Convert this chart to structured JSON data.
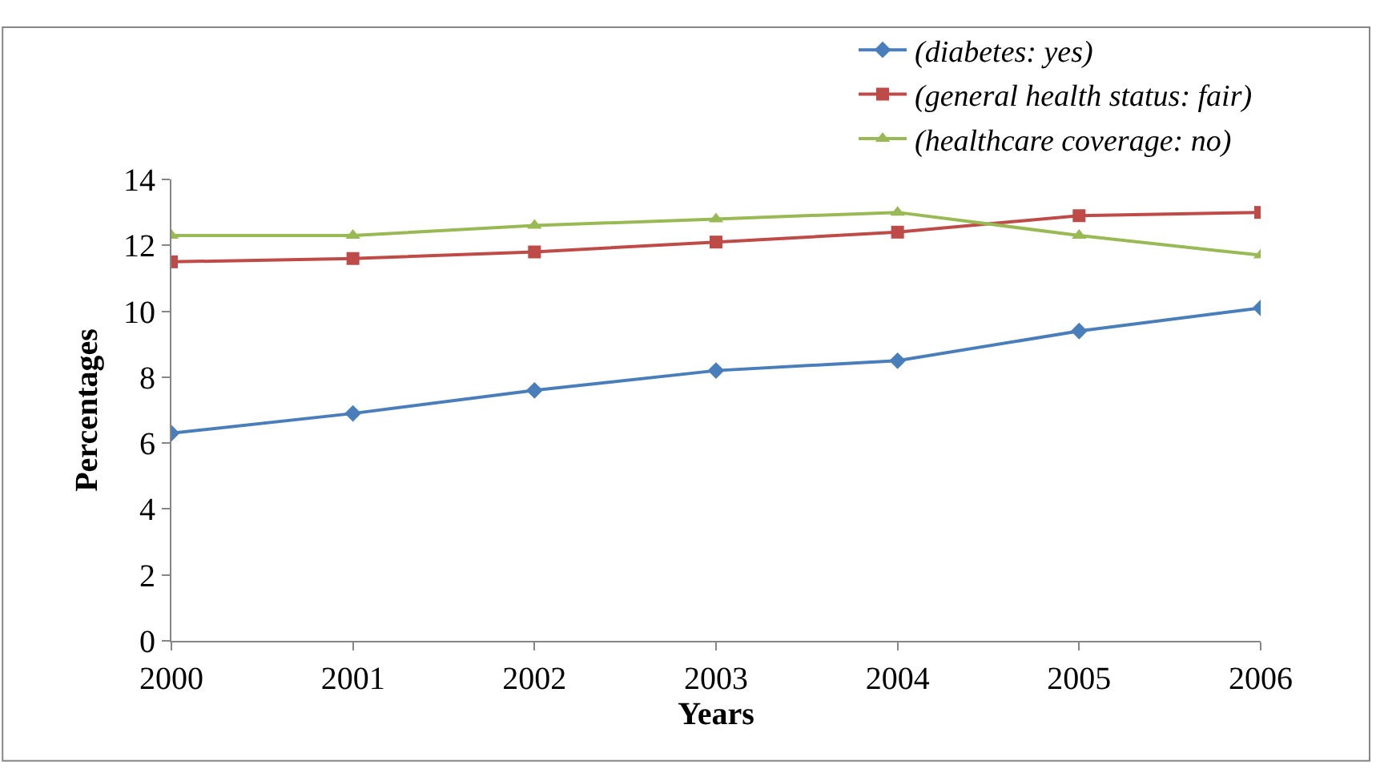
{
  "chart_data": {
    "type": "line",
    "xlabel": "Years",
    "ylabel": "Percentages",
    "categories": [
      "2000",
      "2001",
      "2002",
      "2003",
      "2004",
      "2005",
      "2006"
    ],
    "ylim": [
      0,
      14
    ],
    "yticks": [
      0,
      2,
      4,
      6,
      8,
      10,
      12,
      14
    ],
    "grid": false,
    "legend": "top right",
    "series": [
      {
        "name": "(diabetes: yes)",
        "color": "#4a7ebb",
        "marker": "diamond",
        "values": [
          6.3,
          6.9,
          7.6,
          8.2,
          8.5,
          9.4,
          10.1
        ]
      },
      {
        "name": "(general health status: fair)",
        "color": "#be4b48",
        "marker": "square",
        "values": [
          11.5,
          11.6,
          11.8,
          12.1,
          12.4,
          12.9,
          13.0
        ]
      },
      {
        "name": "(healthcare coverage: no)",
        "color": "#98b954",
        "marker": "triangle",
        "values": [
          12.3,
          12.3,
          12.6,
          12.8,
          13.0,
          12.3,
          11.7
        ]
      }
    ]
  }
}
